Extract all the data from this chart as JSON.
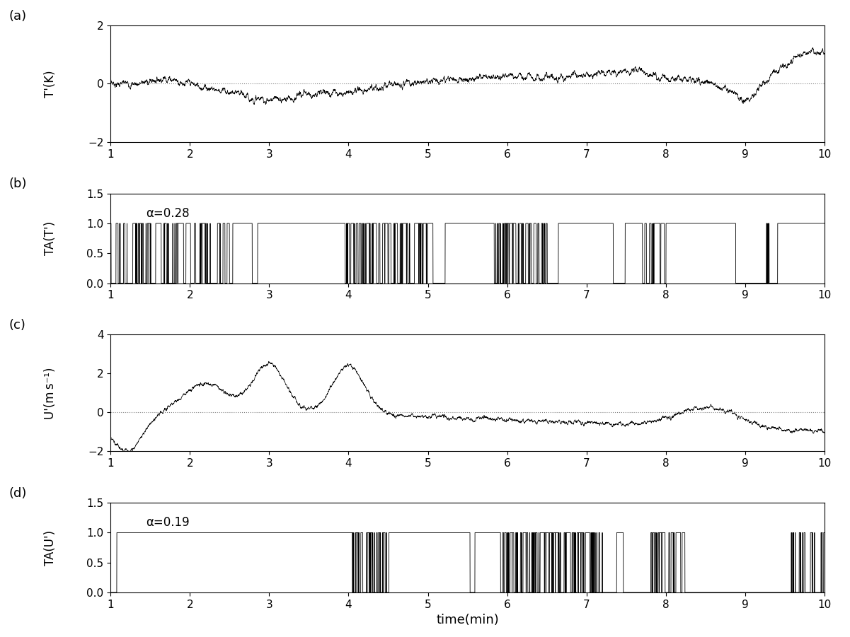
{
  "xlabel": "time(min)",
  "panel_labels": [
    "(a)",
    "(b)",
    "(c)",
    "(d)"
  ],
  "ylabel_a": "T'(K)",
  "ylabel_b": "TA(T')",
  "ylabel_c": "U'(m s⁻¹)",
  "ylabel_d": "TA(U')",
  "alpha_b": "α=0.28",
  "alpha_d": "α=0.19",
  "xlim": [
    1,
    10
  ],
  "ylim_a": [
    -2,
    2
  ],
  "ylim_b": [
    0,
    1.5
  ],
  "ylim_c": [
    -2,
    4
  ],
  "ylim_d": [
    0,
    1.5
  ],
  "xticks": [
    1,
    2,
    3,
    4,
    5,
    6,
    7,
    8,
    9,
    10
  ],
  "yticks_a": [
    -2,
    0,
    2
  ],
  "yticks_b": [
    0,
    0.5,
    1,
    1.5
  ],
  "yticks_c": [
    -2,
    0,
    2,
    4
  ],
  "yticks_d": [
    0,
    0.5,
    1,
    1.5
  ],
  "line_color": "black",
  "bg_color": "white",
  "n_points": 5400,
  "time_start": 1,
  "time_end": 10
}
